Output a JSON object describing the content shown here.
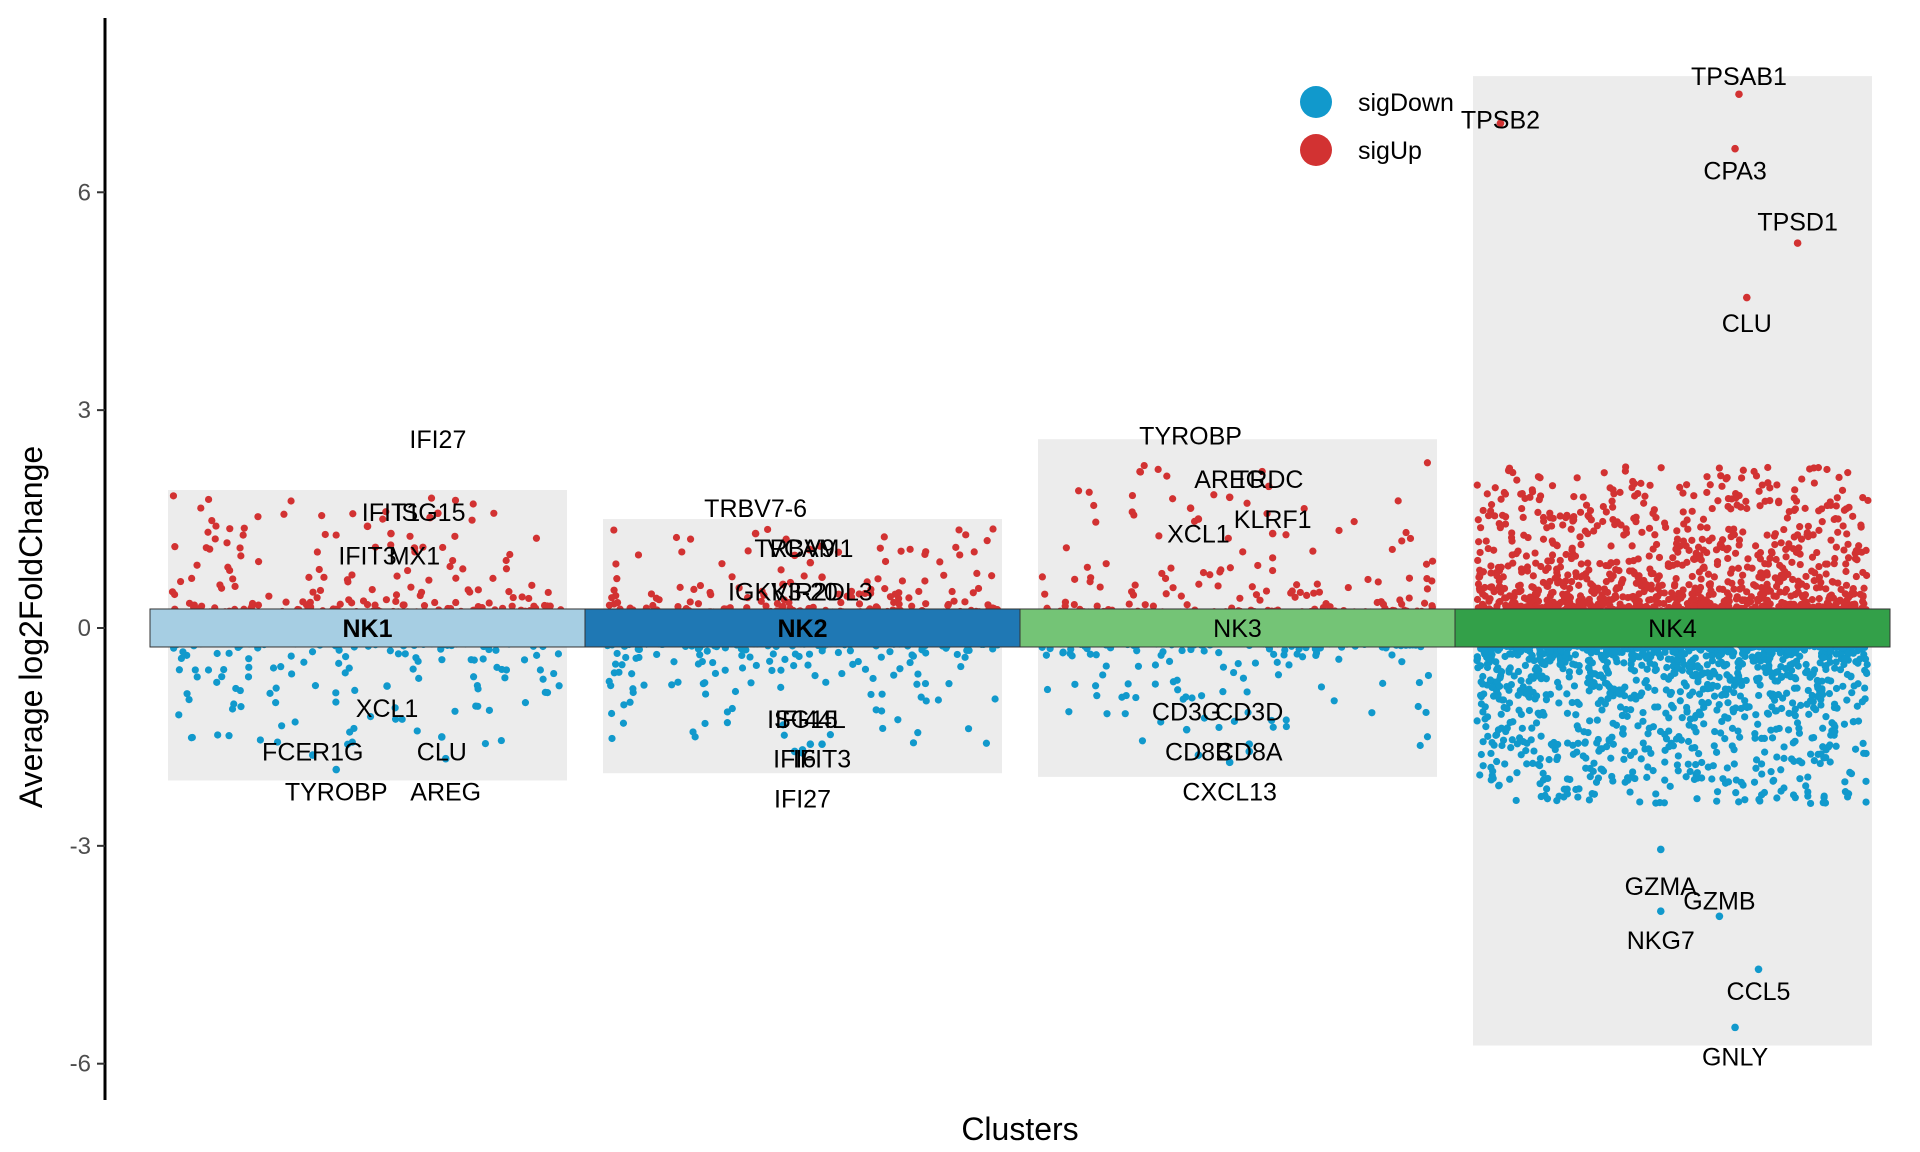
{
  "chart_data": {
    "type": "scatter",
    "title": "",
    "xlabel": "Clusters",
    "ylabel": "Average log2FoldChange",
    "ylim": [
      -6.5,
      8.4
    ],
    "yticks": [
      -6,
      -3,
      0,
      3,
      6
    ],
    "grid": false,
    "legend_position": "top-right",
    "colors": {
      "sigDown": "#1199cc",
      "sigUp": "#d23232",
      "background": "#ececec"
    },
    "legend": [
      {
        "name": "sigDown",
        "color": "#1199cc"
      },
      {
        "name": "sigUp",
        "color": "#d23232"
      }
    ],
    "clusters": [
      {
        "name": "NK1",
        "bold": true,
        "color": "#a6cee3",
        "up_max": 1.9,
        "down_min": -2.1,
        "n_up": 170,
        "n_down": 130,
        "up_genes": [
          {
            "label": "IFI27",
            "y": 2.6,
            "point_x": 0.68,
            "point_y": 1.58
          },
          {
            "label": "IFIT1",
            "y": 1.6,
            "point_x": 0.56,
            "point_y": 1.3
          },
          {
            "label": "ISG15",
            "y": 1.6,
            "point_x": 0.66,
            "point_y": 1.52
          },
          {
            "label": "IFIT3",
            "y": 1.0,
            "point_x": 0.5,
            "point_y": 1.4
          },
          {
            "label": "MX1",
            "y": 1.0,
            "point_x": 0.62,
            "point_y": 1.1
          }
        ],
        "down_genes": [
          {
            "label": "XCL1",
            "y": -1.1,
            "point_x": 0.55,
            "point_y": -0.8
          },
          {
            "label": "FCER1G",
            "y": -1.7,
            "point_x": 0.36,
            "point_y": -1.75
          },
          {
            "label": "CLU",
            "y": -1.7,
            "point_x": 0.69,
            "point_y": -1.5
          },
          {
            "label": "TYROBP",
            "y": -2.25,
            "point_x": 0.42,
            "point_y": -1.95
          },
          {
            "label": "AREG",
            "y": -2.25,
            "point_x": 0.7,
            "point_y": -1.8
          }
        ]
      },
      {
        "name": "NK2",
        "bold": true,
        "color": "#1f78b4",
        "up_max": 1.5,
        "down_min": -2.0,
        "n_up": 170,
        "n_down": 170,
        "up_genes": [
          {
            "label": "TRBV7-6",
            "y": 1.65,
            "point_x": 0.38,
            "point_y": 1.3
          },
          {
            "label": "TRBV9",
            "y": 1.1,
            "point_x": 0.48,
            "point_y": 1.0
          },
          {
            "label": "VCAM1",
            "y": 1.1,
            "point_x": 0.52,
            "point_y": 0.9
          },
          {
            "label": "IGKV3-20",
            "y": 0.5,
            "point_x": 0.45,
            "point_y": 0.6
          },
          {
            "label": "KIR2DL3",
            "y": 0.5,
            "point_x": 0.55,
            "point_y": 0.7
          }
        ],
        "down_genes": [
          {
            "label": "ISG15",
            "y": -1.25,
            "point_x": 0.5,
            "point_y": -1.68
          },
          {
            "label": "IFI44L",
            "y": -1.25,
            "point_x": 0.52,
            "point_y": -1.6
          },
          {
            "label": "IFI6",
            "y": -1.8,
            "point_x": 0.48,
            "point_y": -1.7
          },
          {
            "label": "IFIT3",
            "y": -1.8,
            "point_x": 0.55,
            "point_y": -1.6
          },
          {
            "label": "IFI27",
            "y": -2.35,
            "point_x": 0.5,
            "point_y": -1.72
          }
        ]
      },
      {
        "name": "NK3",
        "bold": false,
        "color": "#74c476",
        "up_max": 2.6,
        "down_min": -2.05,
        "n_up": 160,
        "n_down": 150,
        "up_genes": [
          {
            "label": "TYROBP",
            "y": 2.65,
            "point_x": 0.38,
            "point_y": 1.65
          },
          {
            "label": "AREG",
            "y": 2.05,
            "point_x": 0.48,
            "point_y": 1.8
          },
          {
            "label": "TRDC",
            "y": 2.05,
            "point_x": 0.58,
            "point_y": 1.95
          },
          {
            "label": "XCL1",
            "y": 1.3,
            "point_x": 0.4,
            "point_y": 1.5
          },
          {
            "label": "KLRF1",
            "y": 1.5,
            "point_x": 0.59,
            "point_y": 1.3
          }
        ],
        "down_genes": [
          {
            "label": "CD3G",
            "y": -1.15,
            "point_x": 0.37,
            "point_y": -1.4
          },
          {
            "label": "CD3D",
            "y": -1.15,
            "point_x": 0.53,
            "point_y": -1.6
          },
          {
            "label": "CD8B",
            "y": -1.7,
            "point_x": 0.4,
            "point_y": -1.75
          },
          {
            "label": "CD8A",
            "y": -1.7,
            "point_x": 0.53,
            "point_y": -1.7
          },
          {
            "label": "CXCL13",
            "y": -2.25,
            "point_x": 0.48,
            "point_y": -1.85
          }
        ]
      },
      {
        "name": "NK4",
        "bold": false,
        "color": "#33a049",
        "up_max": 7.6,
        "down_min": -5.75,
        "n_up": 1300,
        "n_down": 1400,
        "up_genes": [
          {
            "label": "TPSAB1",
            "y": 7.6,
            "point_x": 0.67,
            "point_y": 7.35
          },
          {
            "label": "TPSB2",
            "y": 7.0,
            "point_x": 0.06,
            "point_y": 6.95
          },
          {
            "label": "CPA3",
            "y": 6.3,
            "point_x": 0.66,
            "point_y": 6.6
          },
          {
            "label": "TPSD1",
            "y": 5.6,
            "point_x": 0.82,
            "point_y": 5.3
          },
          {
            "label": "CLU",
            "y": 4.2,
            "point_x": 0.69,
            "point_y": 4.55
          }
        ],
        "down_genes": [
          {
            "label": "GZMA",
            "y": -3.55,
            "point_x": 0.47,
            "point_y": -3.05
          },
          {
            "label": "GZMB",
            "y": -3.75,
            "point_x": 0.62,
            "point_y": -3.97
          },
          {
            "label": "NKG7",
            "y": -4.3,
            "point_x": 0.47,
            "point_y": -3.9
          },
          {
            "label": "CCL5",
            "y": -5.0,
            "point_x": 0.72,
            "point_y": -4.7
          },
          {
            "label": "GNLY",
            "y": -5.9,
            "point_x": 0.66,
            "point_y": -5.5
          }
        ]
      }
    ]
  }
}
